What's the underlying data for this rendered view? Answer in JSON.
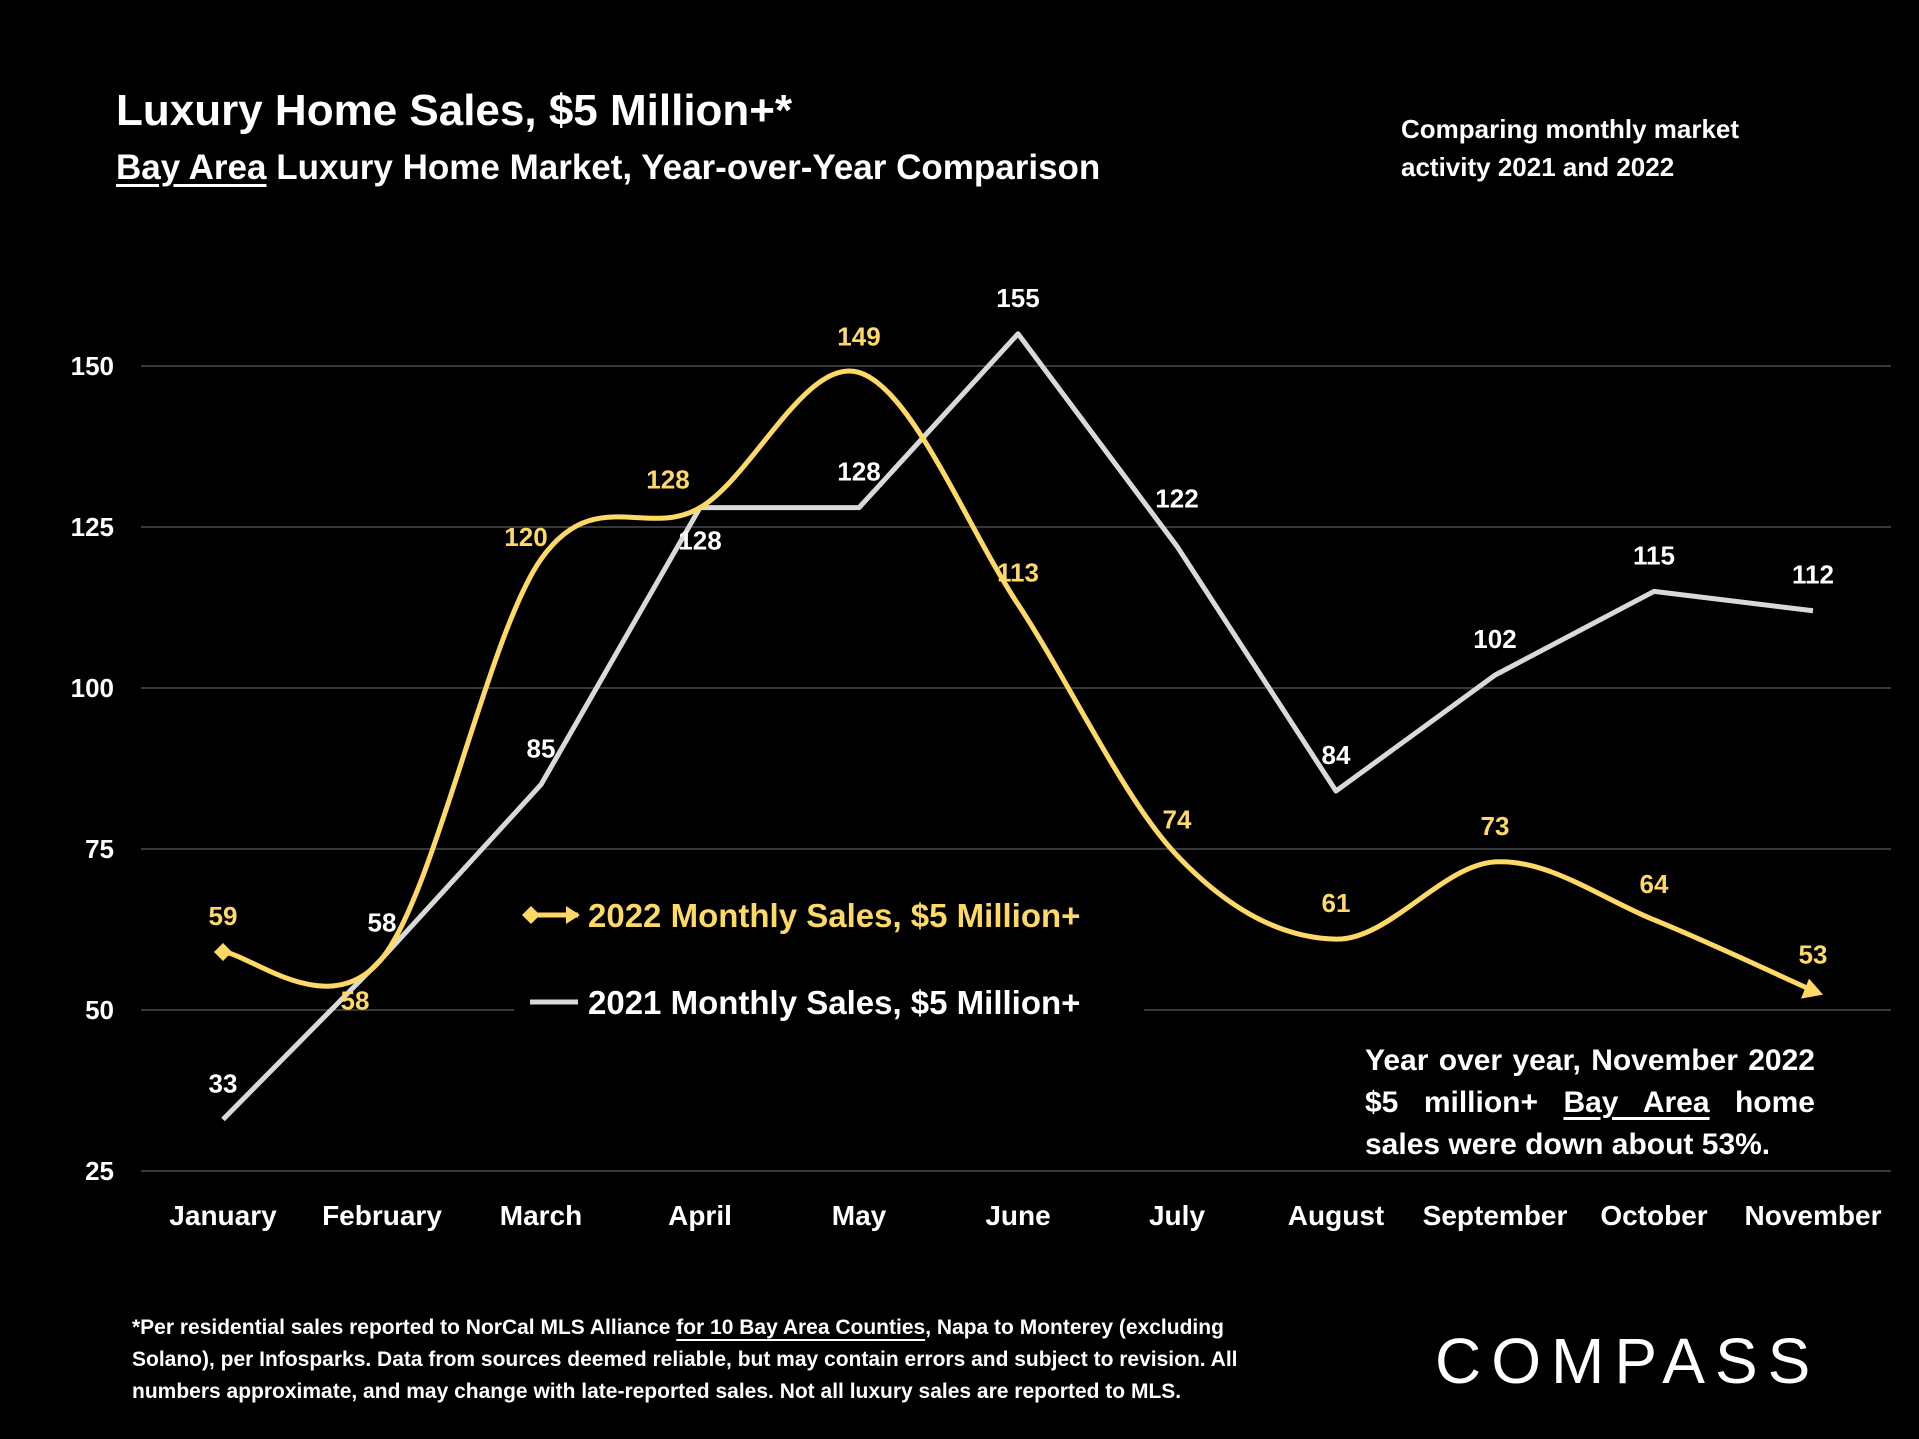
{
  "header": {
    "title": "Luxury Home Sales, $5 Million+*",
    "subtitle_underlined": "Bay Area",
    "subtitle_rest": " Luxury Home Market, Year-over-Year Comparison",
    "note": "Comparing monthly market activity 2021 and 2022"
  },
  "callout": {
    "pre": "Year over year, November 2022 $5 million+ ",
    "underlined": "Bay Area",
    "post": " home sales were down about 53%."
  },
  "footer": {
    "line1_pre": "*Per residential sales reported to NorCal MLS Alliance ",
    "line1_link": "for 10 Bay Area Counties",
    "line1_post": ", Napa to Monterey (excluding",
    "line2": "Solano), per Infosparks. Data from sources deemed reliable, but may contain errors and subject to revision. All",
    "line3": "numbers approximate, and may change with late-reported sales. Not all luxury sales are reported to MLS."
  },
  "logo": "COMPASS",
  "chart_data": {
    "type": "line",
    "categories": [
      "January",
      "February",
      "March",
      "April",
      "May",
      "June",
      "July",
      "August",
      "September",
      "October",
      "November"
    ],
    "yticks": [
      25,
      50,
      75,
      100,
      125,
      150
    ],
    "ylim": [
      25,
      150
    ],
    "grid": true,
    "legend_placement": "center",
    "series": [
      {
        "name": "2022 Monthly Sales, $5 Million+",
        "color": "#FFD966",
        "smooth": true,
        "values": [
          59,
          58,
          120,
          128,
          149,
          113,
          74,
          61,
          73,
          64,
          53
        ]
      },
      {
        "name": "2021 Monthly Sales, $5 Million+",
        "color": "#D9D9D9",
        "smooth": false,
        "values": [
          33,
          58,
          85,
          128,
          128,
          155,
          122,
          84,
          102,
          115,
          112
        ]
      }
    ]
  }
}
